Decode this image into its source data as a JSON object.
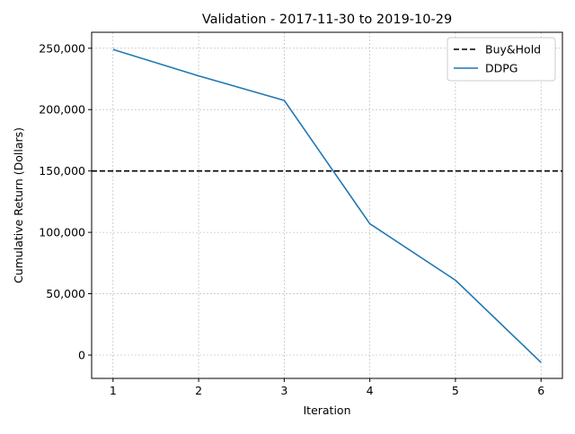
{
  "chart_data": {
    "type": "line",
    "title": "Validation - 2017-11-30 to 2019-10-29",
    "xlabel": "Iteration",
    "ylabel": "Cumulative Return (Dollars)",
    "x": [
      1,
      2,
      3,
      4,
      5,
      6
    ],
    "xlim": [
      0.75,
      6.25
    ],
    "ylim": [
      -19000,
      263000
    ],
    "x_ticks": [
      1,
      2,
      3,
      4,
      5,
      6
    ],
    "x_tick_labels": [
      "1",
      "2",
      "3",
      "4",
      "5",
      "6"
    ],
    "y_ticks": [
      0,
      50000,
      100000,
      150000,
      200000,
      250000
    ],
    "y_tick_labels": [
      "0",
      "50,000",
      "100,000",
      "150,000",
      "200,000",
      "250,000"
    ],
    "grid": true,
    "legend_position": "top-right",
    "series": [
      {
        "name": "Buy&Hold",
        "style": "dashed",
        "color": "#000000",
        "values": [
          150000,
          150000,
          150000,
          150000,
          150000,
          150000
        ]
      },
      {
        "name": "DDPG",
        "style": "solid",
        "color": "#1f77b4",
        "values": [
          249000,
          227500,
          207500,
          107000,
          61000,
          -6000
        ]
      }
    ]
  }
}
